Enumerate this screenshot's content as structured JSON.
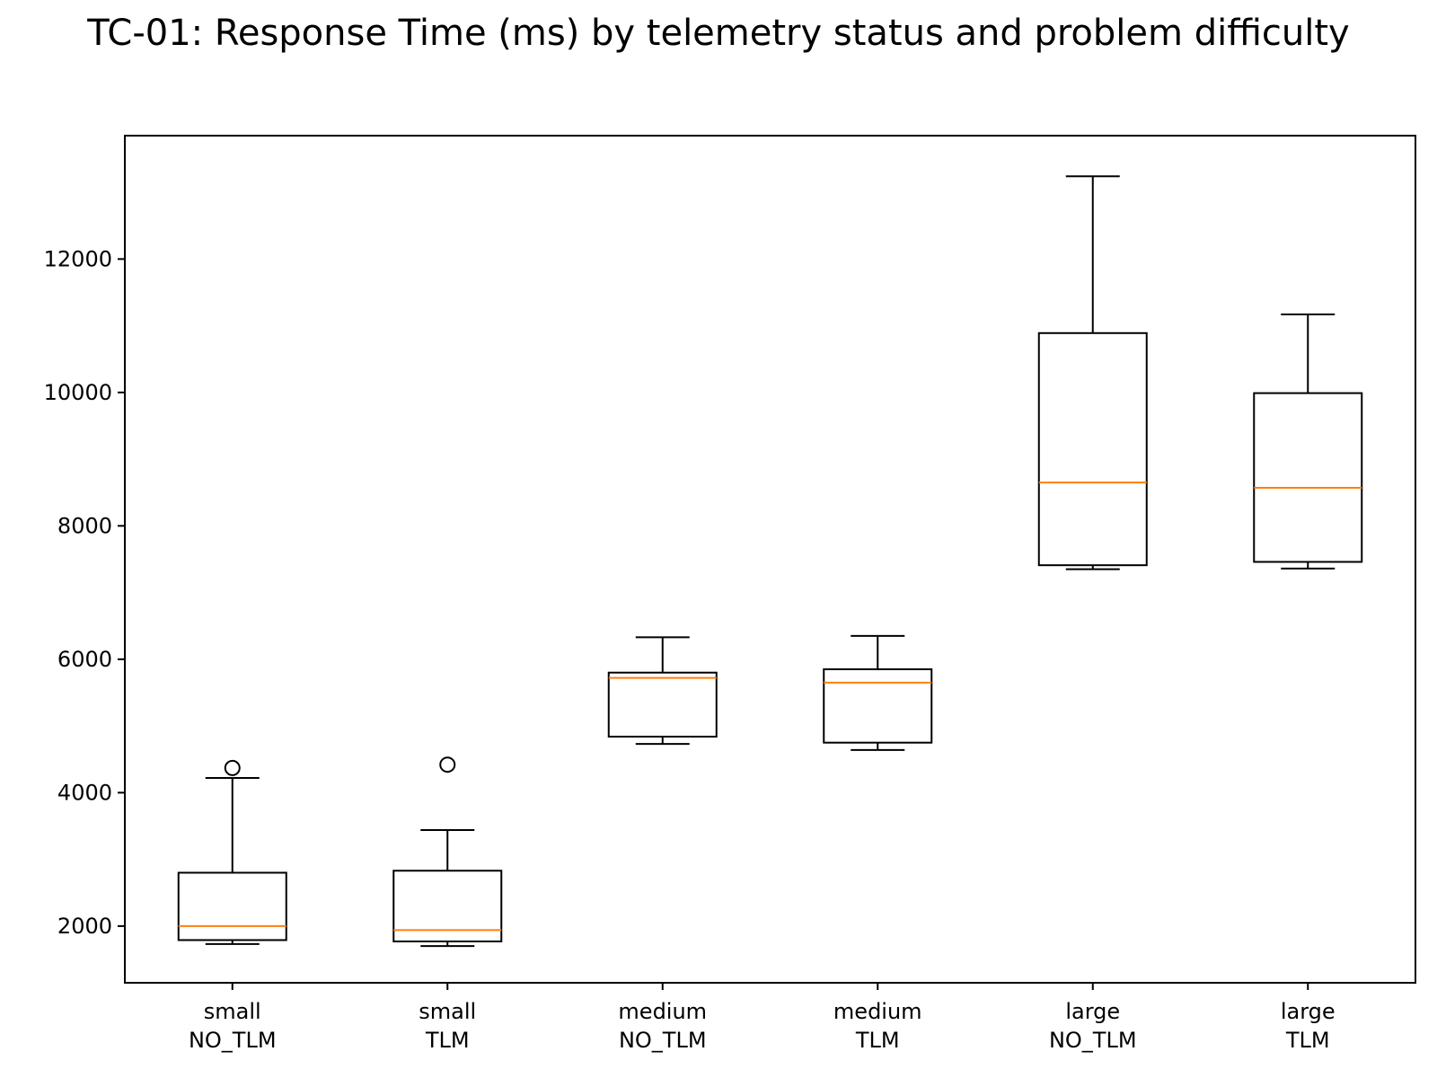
{
  "chart_data": {
    "type": "box",
    "title": "TC-01: Response Time (ms) by telemetry status and problem difficulty",
    "xlabel": "",
    "ylabel": "",
    "ylim": [
      1150,
      13850
    ],
    "yticks": [
      2000,
      4000,
      6000,
      8000,
      10000,
      12000
    ],
    "grid": false,
    "colors": {
      "box": "#000000",
      "median": "#ff7f0e"
    },
    "boxes": [
      {
        "category": [
          "small",
          "NO_TLM"
        ],
        "whisker_low": 1730,
        "q1": 1790,
        "median": 2000,
        "q3": 2800,
        "whisker_high": 4220,
        "outliers": [
          4370
        ]
      },
      {
        "category": [
          "small",
          "TLM"
        ],
        "whisker_low": 1700,
        "q1": 1770,
        "median": 1940,
        "q3": 2830,
        "whisker_high": 3440,
        "outliers": [
          4420
        ]
      },
      {
        "category": [
          "medium",
          "NO_TLM"
        ],
        "whisker_low": 4730,
        "q1": 4840,
        "median": 5720,
        "q3": 5800,
        "whisker_high": 6330,
        "outliers": []
      },
      {
        "category": [
          "medium",
          "TLM"
        ],
        "whisker_low": 4640,
        "q1": 4750,
        "median": 5650,
        "q3": 5850,
        "whisker_high": 6350,
        "outliers": []
      },
      {
        "category": [
          "large",
          "NO_TLM"
        ],
        "whisker_low": 7350,
        "q1": 7410,
        "median": 8650,
        "q3": 10890,
        "whisker_high": 13240,
        "outliers": []
      },
      {
        "category": [
          "large",
          "TLM"
        ],
        "whisker_low": 7360,
        "q1": 7460,
        "median": 8570,
        "q3": 9990,
        "whisker_high": 11170,
        "outliers": []
      }
    ]
  }
}
